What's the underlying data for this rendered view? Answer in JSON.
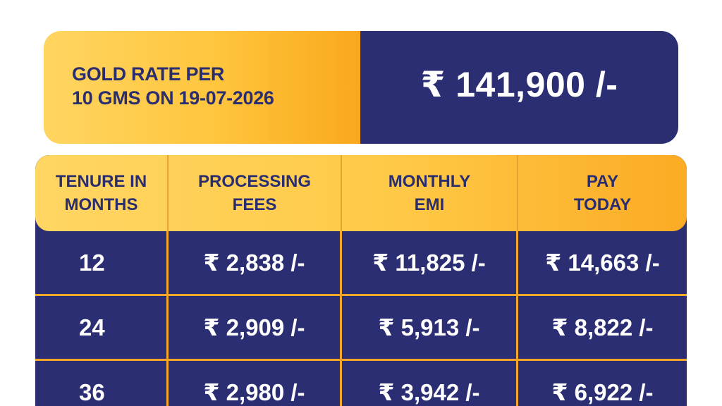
{
  "rate_card": {
    "label_line1": "GOLD RATE PER",
    "label_line2": "10 GMS ON 19-07-2026",
    "value": "₹ 141,900 /-"
  },
  "table": {
    "headers": [
      {
        "line1": "TENURE IN",
        "line2": "MONTHS"
      },
      {
        "line1": "PROCESSING",
        "line2": "FEES"
      },
      {
        "line1": "MONTHLY",
        "line2": "EMI"
      },
      {
        "line1": "PAY",
        "line2": "TODAY"
      }
    ],
    "rows": [
      {
        "tenure": "12",
        "processing_fees": "₹ 2,838 /-",
        "monthly_emi": "₹ 11,825 /-",
        "pay_today": "₹ 14,663 /-"
      },
      {
        "tenure": "24",
        "processing_fees": "₹ 2,909 /-",
        "monthly_emi": "₹ 5,913 /-",
        "pay_today": "₹ 8,822 /-"
      },
      {
        "tenure": "36",
        "processing_fees": "₹ 2,980 /-",
        "monthly_emi": "₹ 3,942 /-",
        "pay_today": "₹ 6,922 /-"
      }
    ]
  },
  "colors": {
    "navy": "#2b2e73",
    "gold_light": "#ffd561",
    "gold_dark": "#f9a81c",
    "divider": "#f4a629",
    "header_text": "#2a2d6e"
  }
}
